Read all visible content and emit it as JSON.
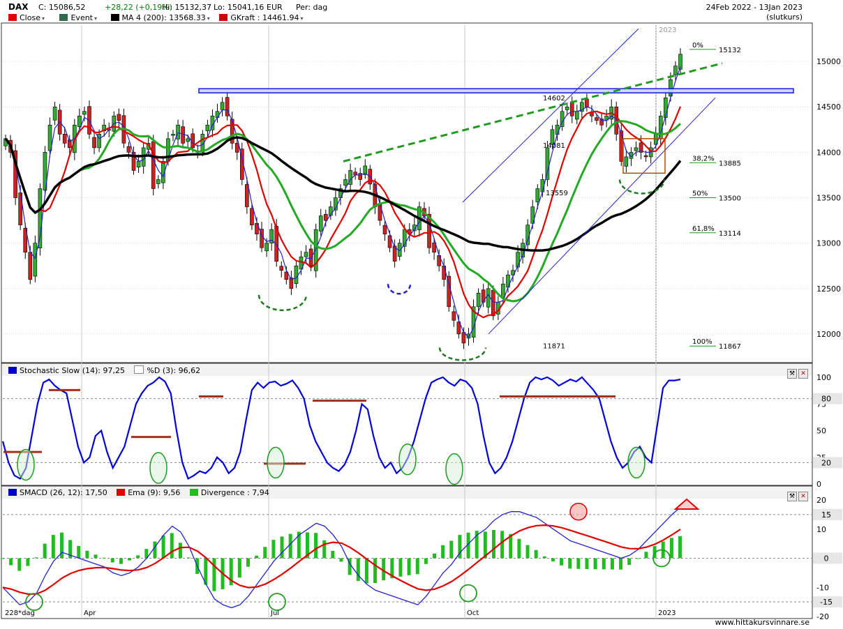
{
  "header": {
    "ticker": "DAX",
    "close": "C: 15086,52",
    "change": "+28,22 (+0,19%)",
    "high": "Hi: 15132,37",
    "low": "Lo: 15041,16",
    "currency": "EUR",
    "period": "Per: dag",
    "daterange": "24Feb 2022 - 13Jan 2023",
    "note": "(slutkurs)"
  },
  "legend_main": [
    {
      "label": "Close",
      "color": "#e00000"
    },
    {
      "label": "Event",
      "color": "#2f6b4f"
    },
    {
      "label": "MA 4 (200): 13568.33",
      "color": "#000000"
    },
    {
      "label": "GKraft : 14461.94",
      "color": "#cc0000"
    }
  ],
  "legend_stoch": [
    {
      "label": "Stochastic Slow (14): 97,25",
      "color": "#0000cc"
    },
    {
      "label": "%D (3): 96,62",
      "color": "#ffffff"
    }
  ],
  "legend_macd": [
    {
      "label": "SMACD (26, 12): 17,50",
      "color": "#0000cc"
    },
    {
      "label": "Ema (9): 9,56",
      "color": "#e00000"
    },
    {
      "label": "Divergence : 7,94",
      "color": "#22bb22"
    }
  ],
  "footer": {
    "x_index_label": "228*dag",
    "site": "www.hittakursvinnare.se"
  },
  "icons": {
    "wrench": "wrench-icon",
    "close": "close-icon"
  },
  "chart_data": [
    {
      "type": "candlestick",
      "title": "DAX",
      "x_ticks": [
        "Apr",
        "Jul",
        "Oct",
        "2023"
      ],
      "year_marker": "2023",
      "y_ticks": [
        12000,
        12500,
        13000,
        13500,
        14000,
        14500,
        15000
      ],
      "ylim": [
        11700,
        15400
      ],
      "price_levels": [
        {
          "value": 14602,
          "label": "14602"
        },
        {
          "value": 14081,
          "label": "14081"
        },
        {
          "value": 13559,
          "label": "13559"
        },
        {
          "value": 11871,
          "label": "11871"
        }
      ],
      "fibonacci": [
        {
          "pct": "0%",
          "value": 15132
        },
        {
          "pct": "38,2%",
          "value": 13885
        },
        {
          "pct": "50%",
          "value": 13500
        },
        {
          "pct": "61,8%",
          "value": 13114
        },
        {
          "pct": "100%",
          "value": 11867
        }
      ],
      "close_series": [
        14150,
        14000,
        13500,
        13200,
        12900,
        12600,
        13000,
        13600,
        14000,
        14300,
        14500,
        14200,
        14100,
        14050,
        14300,
        14400,
        14450,
        14200,
        14050,
        14200,
        14300,
        14250,
        14400,
        14350,
        14100,
        14000,
        13800,
        13900,
        14050,
        14100,
        13600,
        13700,
        13900,
        14150,
        14200,
        14300,
        14100,
        14150,
        14050,
        14000,
        14200,
        14300,
        14400,
        14450,
        14550,
        14400,
        14100,
        14000,
        13700,
        13400,
        13200,
        13100,
        12950,
        13000,
        13150,
        12800,
        12700,
        12600,
        12500,
        12750,
        12850,
        12900,
        12750,
        13150,
        13300,
        13250,
        13400,
        13500,
        13600,
        13700,
        13800,
        13750,
        13700,
        13850,
        13650,
        13400,
        13250,
        13100,
        12950,
        12800,
        13000,
        13150,
        13100,
        13200,
        13400,
        13300,
        12950,
        12900,
        12750,
        12600,
        12300,
        12150,
        12000,
        11900,
        12000,
        12300,
        12450,
        12350,
        12500,
        12200,
        12350,
        12550,
        12650,
        12700,
        12900,
        13000,
        13200,
        13400,
        13600,
        13700,
        14050,
        14250,
        14300,
        14450,
        14500,
        14400,
        14450,
        14550,
        14500,
        14400,
        14350,
        14300,
        14400,
        14500,
        14200,
        13900,
        13950,
        14000,
        14050,
        14000,
        13950,
        14050,
        14200,
        14400,
        14600,
        14800,
        14950,
        15080
      ]
    },
    {
      "type": "line",
      "title": "Stochastic Slow (14)",
      "ylim": [
        0,
        100
      ],
      "y_ticks": [
        0,
        25,
        50,
        75,
        100
      ],
      "levels": [
        20,
        80
      ],
      "series": [
        {
          "name": "Stochastic Slow (14)",
          "last": 97.25
        },
        {
          "name": "%D (3)",
          "last": 96.62
        }
      ],
      "values": [
        40,
        20,
        8,
        5,
        15,
        45,
        75,
        95,
        98,
        92,
        88,
        85,
        60,
        35,
        20,
        25,
        45,
        50,
        30,
        15,
        25,
        35,
        55,
        75,
        85,
        92,
        95,
        100,
        96,
        85,
        50,
        20,
        5,
        8,
        12,
        10,
        15,
        25,
        20,
        10,
        15,
        30,
        60,
        88,
        95,
        90,
        95,
        96,
        92,
        94,
        97,
        90,
        80,
        55,
        40,
        30,
        20,
        15,
        12,
        18,
        30,
        50,
        75,
        70,
        45,
        25,
        15,
        20,
        10,
        15,
        25,
        40,
        60,
        80,
        95,
        98,
        100,
        95,
        92,
        98,
        96,
        90,
        75,
        45,
        20,
        10,
        15,
        25,
        40,
        60,
        80,
        95,
        100,
        98,
        100,
        97,
        92,
        95,
        98,
        96,
        100,
        94,
        88,
        80,
        60,
        40,
        25,
        15,
        20,
        30,
        35,
        25,
        20,
        55,
        90,
        97,
        97,
        98
      ]
    },
    {
      "type": "line",
      "title": "SMACD (26, 12)",
      "ylim": [
        -20,
        20
      ],
      "y_ticks": [
        -20,
        -10,
        0,
        10,
        20
      ],
      "levels": [
        -15,
        15
      ],
      "series": [
        {
          "name": "SMACD (26, 12)",
          "last": 17.5
        },
        {
          "name": "Ema (9)",
          "last": 9.56
        },
        {
          "name": "Divergence",
          "last": 7.94
        }
      ],
      "macd": [
        -10,
        -13,
        -16,
        -15,
        -12,
        -6,
        -1,
        2,
        1,
        0,
        -1,
        -2,
        -3,
        -5,
        -6,
        -5,
        -3,
        0,
        4,
        8,
        11,
        9,
        4,
        -3,
        -9,
        -14,
        -16,
        -17,
        -16,
        -13,
        -9,
        -5,
        -1,
        2,
        5,
        8,
        10,
        12,
        11,
        8,
        4,
        -2,
        -6,
        -9,
        -11,
        -12,
        -13,
        -14,
        -15,
        -16,
        -13,
        -9,
        -5,
        -2,
        2,
        5,
        8,
        10,
        13,
        15,
        16,
        16,
        15,
        14,
        12,
        10,
        8,
        6,
        5,
        4,
        3,
        2,
        1,
        0,
        1,
        3,
        6,
        9,
        12,
        15,
        17.5
      ]
    }
  ]
}
